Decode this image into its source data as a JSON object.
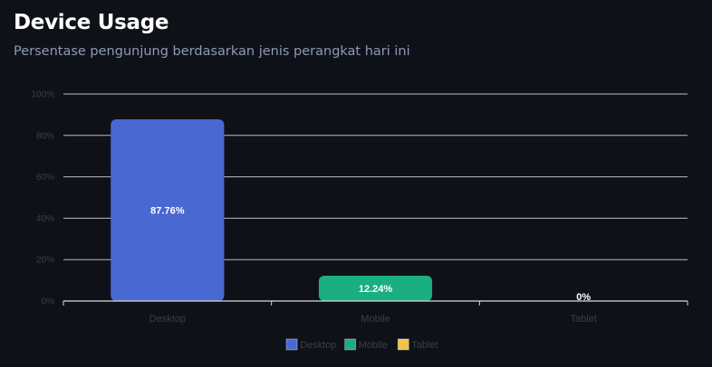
{
  "header": {
    "title": "Device Usage",
    "subtitle": "Persentase pengunjung berdasarkan jenis perangkat hari ini"
  },
  "chart_data": {
    "type": "bar",
    "categories": [
      "Desktop",
      "Mobile",
      "Tablet"
    ],
    "values": [
      87.76,
      12.24,
      0
    ],
    "data_labels": [
      "87.76%",
      "12.24%",
      "0%"
    ],
    "y_ticks": [
      "0%",
      "20%",
      "40%",
      "60%",
      "80%",
      "100%"
    ],
    "ylim": [
      0,
      100
    ],
    "grid": true,
    "legend": {
      "position": "bottom",
      "entries": [
        "Desktop",
        "Mobile",
        "Tablet"
      ]
    },
    "colors": {
      "Desktop": "#4a68d1",
      "Mobile": "#1aae80",
      "Tablet": "#f2c14e"
    },
    "axis_color": "#d9dbe0",
    "tick_label_color": "#3a3f4b",
    "data_label_color": "#ffffff"
  }
}
